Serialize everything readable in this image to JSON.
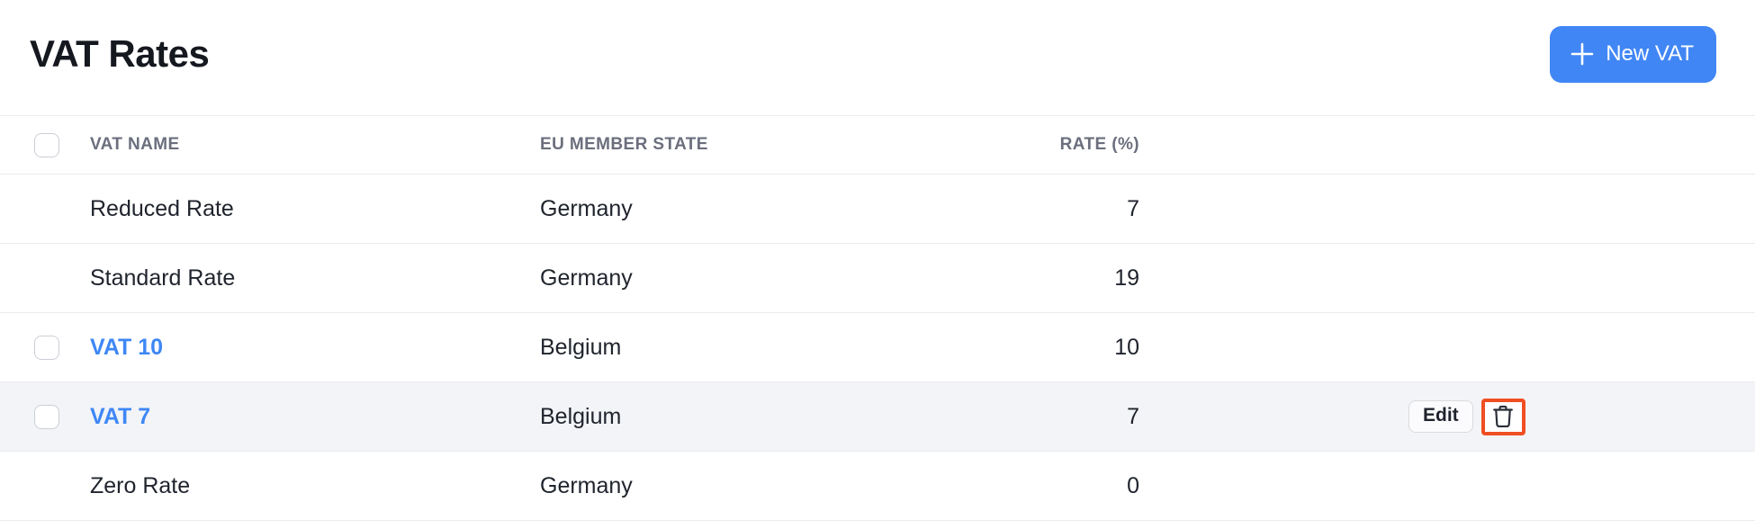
{
  "page": {
    "title": "VAT Rates"
  },
  "header": {
    "new_vat_button": "New VAT",
    "plus_icon": "plus"
  },
  "table": {
    "columns": {
      "name": "VAT NAME",
      "state": "EU MEMBER STATE",
      "rate": "RATE (%)"
    },
    "rows": [
      {
        "name": "Reduced Rate",
        "state": "Germany",
        "rate": "7",
        "is_link": false,
        "has_checkbox": false,
        "highlighted": false,
        "has_actions": false
      },
      {
        "name": "Standard Rate",
        "state": "Germany",
        "rate": "19",
        "is_link": false,
        "has_checkbox": false,
        "highlighted": false,
        "has_actions": false
      },
      {
        "name": "VAT 10",
        "state": "Belgium",
        "rate": "10",
        "is_link": true,
        "has_checkbox": true,
        "highlighted": false,
        "has_actions": false
      },
      {
        "name": "VAT 7",
        "state": "Belgium",
        "rate": "7",
        "is_link": true,
        "has_checkbox": true,
        "highlighted": true,
        "has_actions": true
      },
      {
        "name": "Zero Rate",
        "state": "Germany",
        "rate": "0",
        "is_link": false,
        "has_checkbox": false,
        "highlighted": false,
        "has_actions": false
      }
    ],
    "actions": {
      "edit_label": "Edit",
      "delete_icon": "trash-icon"
    }
  },
  "colors": {
    "primary_button_bg": "#4186f5",
    "link_blue": "#3e87f6",
    "row_highlight_bg": "#f3f4f7",
    "delete_highlight_border": "#f04e23",
    "divider": "#eaecf1",
    "header_text": "#6b6f7d",
    "body_text": "#20242d"
  }
}
